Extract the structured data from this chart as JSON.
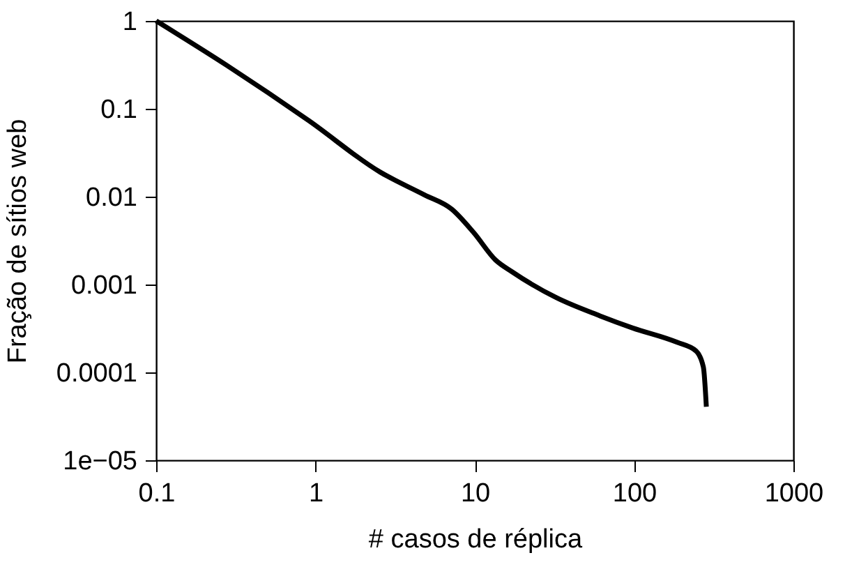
{
  "chart_data": {
    "type": "line",
    "xlabel": "# casos de réplica",
    "ylabel": "Fração de sítios web",
    "log": "xy",
    "grid": false,
    "marker": "none",
    "line_style": "solid",
    "xlim": [
      0.1,
      1000
    ],
    "ylim": [
      1e-05,
      1
    ],
    "xticks": [
      0.1,
      1,
      10,
      100,
      1000
    ],
    "yticks": [
      {
        "value": 1e-05,
        "label": "1e−05"
      },
      0.0001,
      0.001,
      0.01,
      0.1,
      1
    ],
    "series": [
      {
        "color": "#000000",
        "x": [
          0.1,
          0.276,
          0.91,
          2.55,
          4.82,
          7.17,
          9.84,
          13.5,
          17.2,
          32.4,
          61,
          98,
          186,
          245,
          272,
          284
        ],
        "values": [
          1,
          0.314,
          0.073,
          0.019,
          0.0105,
          0.0072,
          0.0039,
          0.0019,
          0.00139,
          0.00071,
          0.00044,
          0.00032,
          0.00022,
          0.000175,
          0.000115,
          4.07e-05
        ]
      }
    ]
  }
}
